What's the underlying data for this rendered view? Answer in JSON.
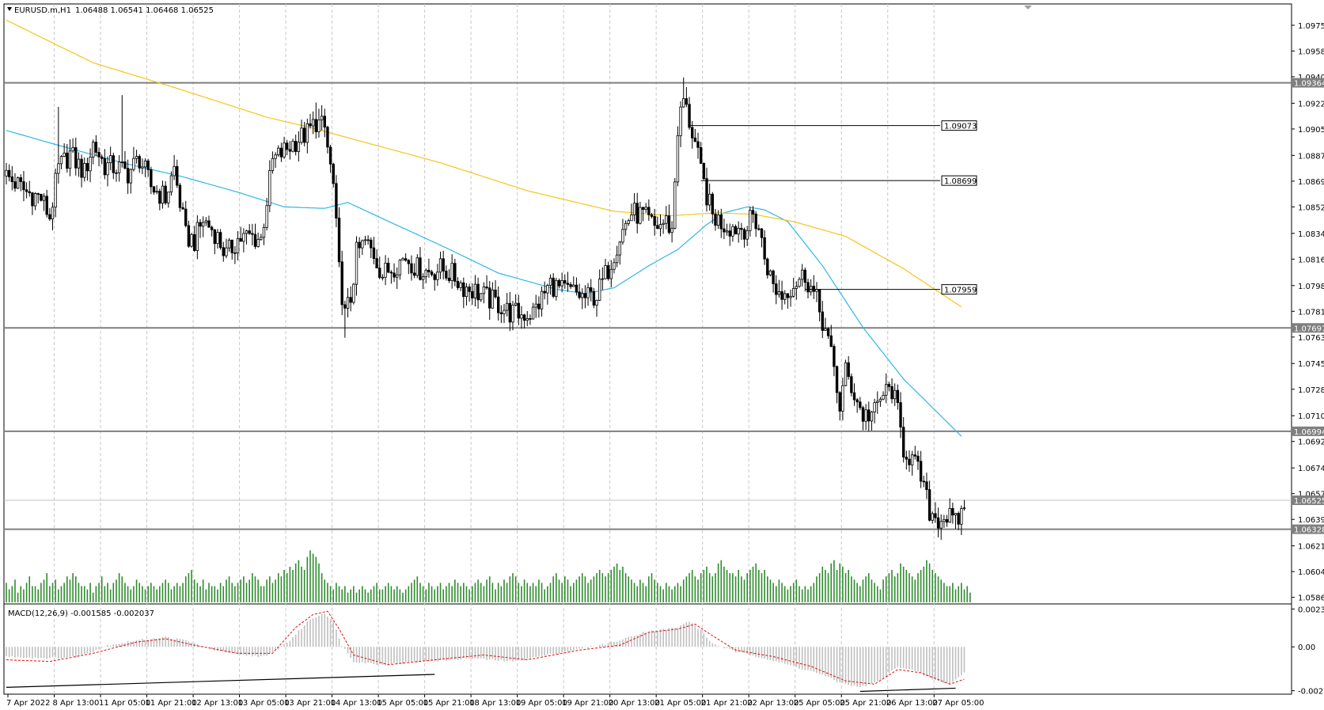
{
  "header": {
    "symbol": "EURUSD.m,H1",
    "ohlc": "1.06488 1.06541 1.06468 1.06525"
  },
  "colors": {
    "background": "#ffffff",
    "grid": "#c8c8c8",
    "candle": "#000000",
    "ma_fast": "#2fb7e6",
    "ma_slow": "#f5c518",
    "volume": "#2e8b2e",
    "macd_hist": "#bfbfbf",
    "macd_signal": "#e01010",
    "level_line": "#7f7f7f",
    "price_badge": "#7f7f7f"
  },
  "chart_data": [
    {
      "type": "candlestick",
      "title": "EURUSD.m,H1",
      "y_ticks": [
        "1.09755",
        "1.09580",
        "1.09405",
        "1.09225",
        "1.09050",
        "1.08870",
        "1.08695",
        "1.08520",
        "1.08340",
        "1.08165",
        "1.07985",
        "1.07810",
        "1.07635",
        "1.07455",
        "1.07280",
        "1.07100",
        "1.06925",
        "1.06745",
        "1.06570",
        "1.06395",
        "1.06215",
        "1.06040",
        "1.05865"
      ],
      "ylim": [
        1.0582,
        1.099
      ],
      "x_ticks": [
        "7 Apr 2022",
        "8 Apr 13:00",
        "11 Apr 05:00",
        "11 Apr 21:00",
        "12 Apr 13:00",
        "13 Apr 05:00",
        "13 Apr 21:00",
        "14 Apr 13:00",
        "15 Apr 05:00",
        "15 Apr 21:00",
        "18 Apr 13:00",
        "19 Apr 05:00",
        "19 Apr 21:00",
        "20 Apr 13:00",
        "21 Apr 05:00",
        "21 Apr 21:00",
        "22 Apr 13:00",
        "25 Apr 05:00",
        "25 Apr 21:00",
        "26 Apr 13:00",
        "27 Apr 05:00"
      ],
      "horizontal_levels": [
        {
          "value": 1.09364,
          "label": "1.09364"
        },
        {
          "value": 1.07697,
          "label": "1.07697"
        },
        {
          "value": 1.06994,
          "label": "1.06994"
        },
        {
          "value": 1.06328,
          "label": "1.06328"
        }
      ],
      "current_price": {
        "value": 1.06525,
        "label": "1.06525"
      },
      "annotated_levels": [
        {
          "value": 1.09073,
          "label": "1.09073"
        },
        {
          "value": 1.08699,
          "label": "1.08699"
        },
        {
          "value": 1.07959,
          "label": "1.07959"
        }
      ],
      "close_path": [
        [
          0,
          1.0873
        ],
        [
          7,
          1.0862
        ],
        [
          12,
          1.0858
        ],
        [
          15,
          1.0845
        ],
        [
          18,
          1.0878
        ],
        [
          22,
          1.0888
        ],
        [
          27,
          1.0875
        ],
        [
          30,
          1.0895
        ],
        [
          34,
          1.088
        ],
        [
          38,
          1.0879
        ],
        [
          42,
          1.0875
        ],
        [
          46,
          1.0885
        ],
        [
          50,
          1.0866
        ],
        [
          55,
          1.0858
        ],
        [
          58,
          1.0878
        ],
        [
          62,
          1.0832
        ],
        [
          65,
          1.0829
        ],
        [
          68,
          1.0843
        ],
        [
          72,
          1.0835
        ],
        [
          76,
          1.0819
        ],
        [
          80,
          1.083
        ],
        [
          84,
          1.0832
        ],
        [
          88,
          1.083
        ],
        [
          92,
          1.0883
        ],
        [
          96,
          1.089
        ],
        [
          100,
          1.0897
        ],
        [
          104,
          1.0902
        ],
        [
          107,
          1.091
        ],
        [
          110,
          1.0905
        ],
        [
          113,
          1.0866
        ],
        [
          115,
          1.0808
        ],
        [
          117,
          1.0778
        ],
        [
          119,
          1.079
        ],
        [
          121,
          1.082
        ],
        [
          124,
          1.0828
        ],
        [
          127,
          1.082
        ],
        [
          130,
          1.0806
        ],
        [
          134,
          1.0812
        ],
        [
          138,
          1.0818
        ],
        [
          142,
          1.081
        ],
        [
          146,
          1.0808
        ],
        [
          150,
          1.081
        ],
        [
          154,
          1.0806
        ],
        [
          158,
          1.0798
        ],
        [
          162,
          1.0795
        ],
        [
          166,
          1.079
        ],
        [
          170,
          1.0786
        ],
        [
          174,
          1.078
        ],
        [
          178,
          1.0779
        ],
        [
          182,
          1.078
        ],
        [
          185,
          1.079
        ],
        [
          188,
          1.08
        ],
        [
          192,
          1.0795
        ],
        [
          196,
          1.0794
        ],
        [
          200,
          1.079
        ],
        [
          204,
          1.0792
        ],
        [
          208,
          1.081
        ],
        [
          212,
          1.0832
        ],
        [
          216,
          1.0848
        ],
        [
          220,
          1.0846
        ],
        [
          224,
          1.0838
        ],
        [
          228,
          1.0842
        ],
        [
          230,
          1.0836
        ],
        [
          232,
          1.0905
        ],
        [
          234,
          1.0925
        ],
        [
          236,
          1.091
        ],
        [
          238,
          1.0895
        ],
        [
          240,
          1.0875
        ],
        [
          242,
          1.086
        ],
        [
          244,
          1.0846
        ],
        [
          248,
          1.084
        ],
        [
          252,
          1.0838
        ],
        [
          256,
          1.0838
        ],
        [
          258,
          1.0846
        ],
        [
          260,
          1.0838
        ],
        [
          262,
          1.0818
        ],
        [
          265,
          1.0798
        ],
        [
          268,
          1.0792
        ],
        [
          272,
          1.08
        ],
        [
          276,
          1.0806
        ],
        [
          278,
          1.0797
        ],
        [
          280,
          1.0788
        ],
        [
          283,
          1.0768
        ],
        [
          286,
          1.0742
        ],
        [
          288,
          1.0716
        ],
        [
          290,
          1.074
        ],
        [
          293,
          1.0725
        ],
        [
          296,
          1.071
        ],
        [
          300,
          1.0712
        ],
        [
          303,
          1.0725
        ],
        [
          306,
          1.0728
        ],
        [
          308,
          1.0712
        ],
        [
          310,
          1.0688
        ],
        [
          313,
          1.068
        ],
        [
          316,
          1.0668
        ],
        [
          319,
          1.0645
        ],
        [
          322,
          1.064
        ],
        [
          325,
          1.0642
        ],
        [
          328,
          1.0636
        ],
        [
          331,
          1.0648
        ]
      ],
      "wick_extremes": [
        {
          "idx": 18,
          "high": 1.092
        },
        {
          "idx": 40,
          "high": 1.0928
        },
        {
          "idx": 62,
          "low": 1.0838
        },
        {
          "idx": 107,
          "high": 1.0923
        },
        {
          "idx": 117,
          "low": 1.0763
        },
        {
          "idx": 172,
          "low": 1.0773
        },
        {
          "idx": 234,
          "high": 1.094
        },
        {
          "idx": 268,
          "low": 1.0782
        },
        {
          "idx": 328,
          "low": 1.0633
        }
      ]
    },
    {
      "type": "line",
      "series": [
        {
          "role": "fast-ma",
          "x": [
            0,
            16,
            40,
            60,
            80,
            96,
            110,
            118,
            130,
            150,
            170,
            190,
            200,
            210,
            222,
            232,
            242,
            248,
            256,
            262,
            270,
            282,
            296,
            310,
            330
          ],
          "values": [
            1.0904,
            1.0895,
            1.0882,
            1.0873,
            1.0862,
            1.0852,
            1.0851,
            1.0855,
            1.0844,
            1.0826,
            1.0807,
            1.0796,
            1.0793,
            1.0797,
            1.0812,
            1.0823,
            1.084,
            1.0848,
            1.0852,
            1.085,
            1.0842,
            1.0812,
            1.077,
            1.0735,
            1.0696
          ]
        },
        {
          "role": "slow-ma",
          "x": [
            0,
            30,
            60,
            90,
            105,
            120,
            150,
            180,
            210,
            230,
            245,
            258,
            272,
            290,
            310,
            330
          ],
          "values": [
            1.0979,
            1.095,
            1.0932,
            1.0913,
            1.0906,
            1.0898,
            1.0882,
            1.0863,
            1.0849,
            1.0846,
            1.0848,
            1.0847,
            1.0842,
            1.0832,
            1.081,
            1.0784
          ]
        }
      ]
    },
    {
      "type": "bar",
      "role": "volume",
      "values": [
        6,
        4,
        5,
        7,
        3,
        5,
        4,
        6,
        8,
        5,
        5,
        4,
        6,
        7,
        9,
        5,
        6,
        7,
        4,
        5,
        6,
        8,
        7,
        9,
        8,
        6,
        5,
        5,
        4,
        6,
        3,
        5,
        6,
        8,
        5,
        6,
        4,
        6,
        7,
        9,
        8,
        6,
        5,
        4,
        5,
        7,
        6,
        5,
        4,
        5,
        6,
        5,
        4,
        5,
        6,
        7,
        6,
        4,
        5,
        6,
        5,
        6,
        8,
        9,
        10,
        7,
        6,
        5,
        7,
        4,
        6,
        5,
        5,
        4,
        6,
        5,
        7,
        8,
        6,
        5,
        6,
        7,
        8,
        6,
        7,
        9,
        8,
        7,
        5,
        5,
        7,
        8,
        6,
        7,
        9,
        8,
        10,
        9,
        11,
        10,
        12,
        13,
        11,
        10,
        14,
        16,
        15,
        14,
        12,
        9,
        7,
        6,
        5,
        4,
        6,
        5,
        4,
        5,
        3,
        4,
        5,
        3,
        4,
        5,
        4,
        3,
        4,
        5,
        6,
        4,
        4,
        5,
        6,
        5,
        4,
        5,
        4,
        3,
        4,
        5,
        6,
        7,
        8,
        6,
        5,
        4,
        6,
        5,
        4,
        5,
        6,
        4,
        5,
        6,
        5,
        7,
        6,
        5,
        6,
        5,
        4,
        5,
        6,
        7,
        6,
        5,
        7,
        8,
        6,
        4,
        6,
        5,
        7,
        6,
        8,
        9,
        8,
        6,
        5,
        7,
        6,
        5,
        6,
        5,
        7,
        6,
        4,
        5,
        6,
        8,
        9,
        7,
        6,
        8,
        7,
        5,
        6,
        7,
        8,
        9,
        8,
        6,
        7,
        8,
        9,
        10,
        9,
        8,
        9,
        10,
        11,
        12,
        10,
        11,
        9,
        8,
        7,
        6,
        5,
        7,
        6,
        5,
        8,
        9,
        7,
        6,
        5,
        4,
        6,
        5,
        4,
        5,
        6,
        5,
        7,
        8,
        9,
        10,
        8,
        7,
        9,
        10,
        11,
        9,
        8,
        9,
        12,
        13,
        11,
        10,
        9,
        9,
        8,
        10,
        8,
        7,
        9,
        10,
        11,
        12,
        10,
        9,
        10,
        8,
        7,
        6,
        5,
        7,
        6,
        5,
        4,
        5,
        6,
        7,
        5,
        4,
        5,
        4,
        5,
        6,
        8,
        9,
        11,
        10,
        9,
        12,
        13,
        10,
        12,
        11,
        9,
        10,
        8,
        7,
        6,
        5,
        7,
        8,
        9,
        7,
        6,
        5,
        4,
        7,
        8,
        9,
        10,
        8,
        9,
        12,
        11,
        10,
        9,
        8,
        7,
        9,
        10,
        11,
        13,
        12,
        10,
        9,
        8,
        7,
        6,
        5,
        5,
        6,
        4,
        5,
        6,
        4,
        5,
        3
      ],
      "max": 20
    },
    {
      "type": "bar",
      "title": "MACD(12,26,9) -0.001585 -0.002037",
      "y_ticks": [
        "0.002338",
        "0.00",
        "-0.002707"
      ],
      "ylim": [
        -0.00292,
        0.00265
      ],
      "hist_path": [
        [
          0,
          -0.0006
        ],
        [
          15,
          -0.0007
        ],
        [
          25,
          -0.0006
        ],
        [
          35,
          0.0001
        ],
        [
          45,
          0.0004
        ],
        [
          55,
          0.0006
        ],
        [
          62,
          0.0004
        ],
        [
          70,
          -0.0001
        ],
        [
          80,
          -0.0005
        ],
        [
          90,
          -0.0006
        ],
        [
          98,
          0.0004
        ],
        [
          105,
          0.0017
        ],
        [
          110,
          0.0021
        ],
        [
          113,
          0.0015
        ],
        [
          116,
          0.0001
        ],
        [
          120,
          -0.0009
        ],
        [
          130,
          -0.0011
        ],
        [
          145,
          -0.0009
        ],
        [
          160,
          -0.0007
        ],
        [
          175,
          -0.0009
        ],
        [
          190,
          -0.0004
        ],
        [
          205,
          0.0001
        ],
        [
          212,
          0.0004
        ],
        [
          220,
          0.0009
        ],
        [
          228,
          0.0011
        ],
        [
          232,
          0.0012
        ],
        [
          236,
          0.0016
        ],
        [
          240,
          0.001
        ],
        [
          244,
          0.0002
        ],
        [
          252,
          -0.0003
        ],
        [
          260,
          -0.0006
        ],
        [
          270,
          -0.0011
        ],
        [
          280,
          -0.0016
        ],
        [
          288,
          -0.0022
        ],
        [
          295,
          -0.0025
        ],
        [
          302,
          -0.0021
        ],
        [
          308,
          -0.0012
        ],
        [
          314,
          -0.0015
        ],
        [
          320,
          -0.002
        ],
        [
          326,
          -0.0023
        ],
        [
          331,
          -0.0016
        ]
      ],
      "signal_path": [
        [
          0,
          -0.0008
        ],
        [
          15,
          -0.0009
        ],
        [
          30,
          -0.0004
        ],
        [
          45,
          0.0003
        ],
        [
          55,
          0.0005
        ],
        [
          65,
          0.0001
        ],
        [
          80,
          -0.0004
        ],
        [
          92,
          -0.0004
        ],
        [
          100,
          0.0012
        ],
        [
          106,
          0.002
        ],
        [
          111,
          0.0022
        ],
        [
          115,
          0.0011
        ],
        [
          120,
          -0.0005
        ],
        [
          132,
          -0.0011
        ],
        [
          148,
          -0.0008
        ],
        [
          165,
          -0.0005
        ],
        [
          180,
          -0.0008
        ],
        [
          198,
          -0.0002
        ],
        [
          212,
          0.0001
        ],
        [
          222,
          0.0009
        ],
        [
          232,
          0.0011
        ],
        [
          238,
          0.0014
        ],
        [
          243,
          0.0008
        ],
        [
          252,
          -0.0002
        ],
        [
          265,
          -0.0006
        ],
        [
          278,
          -0.0012
        ],
        [
          290,
          -0.0021
        ],
        [
          300,
          -0.0023
        ],
        [
          308,
          -0.0014
        ],
        [
          316,
          -0.0016
        ],
        [
          326,
          -0.0023
        ],
        [
          331,
          -0.002
        ]
      ],
      "trendlines": [
        {
          "x1": 0,
          "y1": -0.0025,
          "x2": 148,
          "y2": -0.0017
        },
        {
          "x1": 295,
          "y1": -0.00275,
          "x2": 328,
          "y2": -0.00255
        }
      ]
    }
  ]
}
